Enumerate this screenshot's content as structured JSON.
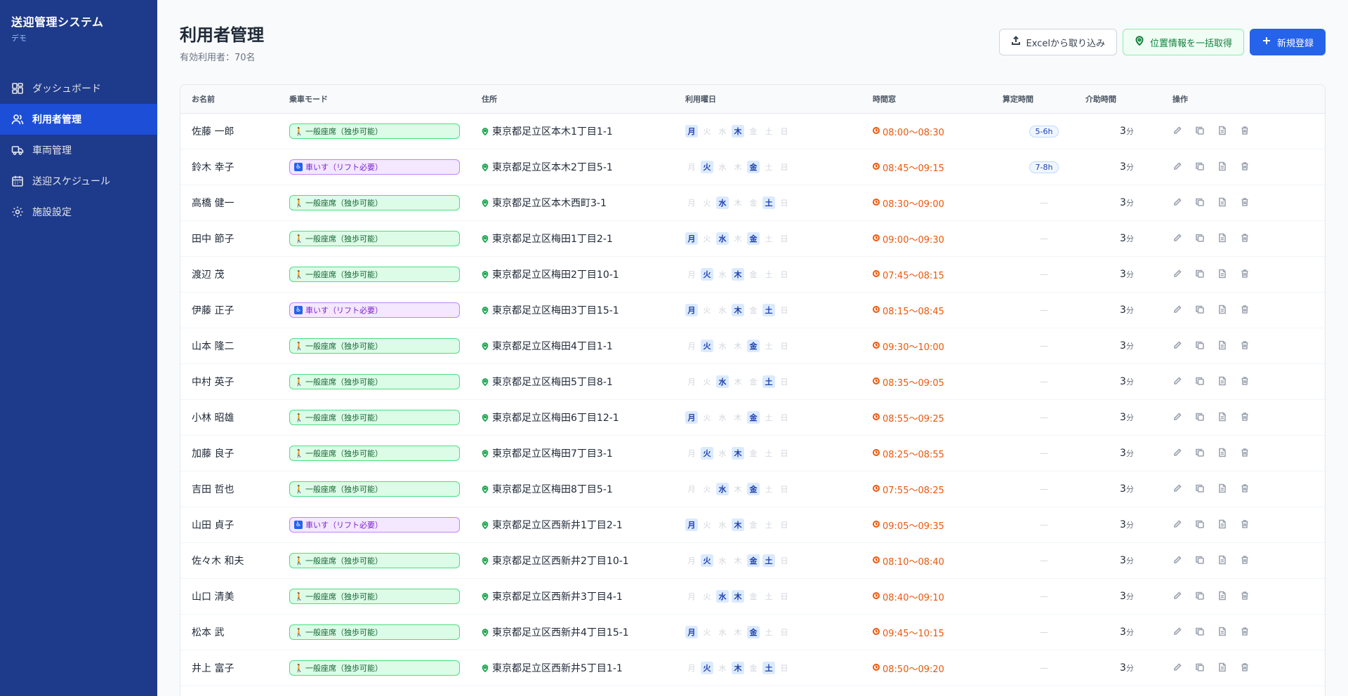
{
  "app": {
    "title": "送迎管理システム",
    "subtitle": "デモ"
  },
  "sidebar": {
    "items": [
      {
        "label": "ダッシュボード",
        "icon": "dashboard-icon",
        "active": false
      },
      {
        "label": "利用者管理",
        "icon": "users-icon",
        "active": true
      },
      {
        "label": "車両管理",
        "icon": "truck-icon",
        "active": false
      },
      {
        "label": "送迎スケジュール",
        "icon": "calendar-icon",
        "active": false
      },
      {
        "label": "施設設定",
        "icon": "gear-icon",
        "active": false
      }
    ]
  },
  "header": {
    "title": "利用者管理",
    "subtitle": "有効利用者：70名"
  },
  "actions": {
    "import_label": "Excelから取り込み",
    "geo_label": "位置情報を一括取得",
    "new_label": "新規登録"
  },
  "table": {
    "columns": [
      "お名前",
      "乗車モード",
      "住所",
      "利用曜日",
      "時間窓",
      "算定時間",
      "介助時間",
      "操作"
    ],
    "day_labels": [
      "月",
      "火",
      "水",
      "木",
      "金",
      "土",
      "日"
    ],
    "mode_labels": {
      "walk": "一般座席（独歩可能）",
      "wheel": "車いす（リフト必要）"
    },
    "empty_calc": "—",
    "assist_unit": "分",
    "rows": [
      {
        "name": "佐藤 一郎",
        "mode": "walk",
        "address": "東京都足立区本木1丁目1-1",
        "days": [
          1,
          0,
          0,
          1,
          0,
          0,
          0
        ],
        "time": "08:00〜08:30",
        "calc": "5-6h",
        "assist": "3"
      },
      {
        "name": "鈴木 幸子",
        "mode": "wheel",
        "address": "東京都足立区本木2丁目5-1",
        "days": [
          0,
          1,
          0,
          0,
          1,
          0,
          0
        ],
        "time": "08:45〜09:15",
        "calc": "7-8h",
        "assist": "3"
      },
      {
        "name": "高橋 健一",
        "mode": "walk",
        "address": "東京都足立区本木西町3-1",
        "days": [
          0,
          0,
          1,
          0,
          0,
          1,
          0
        ],
        "time": "08:30〜09:00",
        "calc": "",
        "assist": "3"
      },
      {
        "name": "田中 節子",
        "mode": "walk",
        "address": "東京都足立区梅田1丁目2-1",
        "days": [
          1,
          0,
          1,
          0,
          1,
          0,
          0
        ],
        "time": "09:00〜09:30",
        "calc": "",
        "assist": "3"
      },
      {
        "name": "渡辺 茂",
        "mode": "walk",
        "address": "東京都足立区梅田2丁目10-1",
        "days": [
          0,
          1,
          0,
          1,
          0,
          0,
          0
        ],
        "time": "07:45〜08:15",
        "calc": "",
        "assist": "3"
      },
      {
        "name": "伊藤 正子",
        "mode": "wheel",
        "address": "東京都足立区梅田3丁目15-1",
        "days": [
          1,
          0,
          0,
          1,
          0,
          1,
          0
        ],
        "time": "08:15〜08:45",
        "calc": "",
        "assist": "3"
      },
      {
        "name": "山本 隆二",
        "mode": "walk",
        "address": "東京都足立区梅田4丁目1-1",
        "days": [
          0,
          1,
          0,
          0,
          1,
          0,
          0
        ],
        "time": "09:30〜10:00",
        "calc": "",
        "assist": "3"
      },
      {
        "name": "中村 英子",
        "mode": "walk",
        "address": "東京都足立区梅田5丁目8-1",
        "days": [
          0,
          0,
          1,
          0,
          0,
          1,
          0
        ],
        "time": "08:35〜09:05",
        "calc": "",
        "assist": "3"
      },
      {
        "name": "小林 昭雄",
        "mode": "walk",
        "address": "東京都足立区梅田6丁目12-1",
        "days": [
          1,
          0,
          0,
          0,
          1,
          0,
          0
        ],
        "time": "08:55〜09:25",
        "calc": "",
        "assist": "3"
      },
      {
        "name": "加藤 良子",
        "mode": "walk",
        "address": "東京都足立区梅田7丁目3-1",
        "days": [
          0,
          1,
          0,
          1,
          0,
          0,
          0
        ],
        "time": "08:25〜08:55",
        "calc": "",
        "assist": "3"
      },
      {
        "name": "吉田 哲也",
        "mode": "walk",
        "address": "東京都足立区梅田8丁目5-1",
        "days": [
          0,
          0,
          1,
          0,
          1,
          0,
          0
        ],
        "time": "07:55〜08:25",
        "calc": "",
        "assist": "3"
      },
      {
        "name": "山田 貞子",
        "mode": "wheel",
        "address": "東京都足立区西新井1丁目2-1",
        "days": [
          1,
          0,
          0,
          1,
          0,
          0,
          0
        ],
        "time": "09:05〜09:35",
        "calc": "",
        "assist": "3"
      },
      {
        "name": "佐々木 和夫",
        "mode": "walk",
        "address": "東京都足立区西新井2丁目10-1",
        "days": [
          0,
          1,
          0,
          0,
          1,
          1,
          0
        ],
        "time": "08:10〜08:40",
        "calc": "",
        "assist": "3"
      },
      {
        "name": "山口 清美",
        "mode": "walk",
        "address": "東京都足立区西新井3丁目4-1",
        "days": [
          0,
          0,
          1,
          1,
          0,
          0,
          0
        ],
        "time": "08:40〜09:10",
        "calc": "",
        "assist": "3"
      },
      {
        "name": "松本 武",
        "mode": "walk",
        "address": "東京都足立区西新井4丁目15-1",
        "days": [
          1,
          0,
          0,
          0,
          1,
          0,
          0
        ],
        "time": "09:45〜10:15",
        "calc": "",
        "assist": "3"
      },
      {
        "name": "井上 富子",
        "mode": "walk",
        "address": "東京都足立区西新井5丁目1-1",
        "days": [
          0,
          1,
          0,
          1,
          0,
          1,
          0
        ],
        "time": "08:50〜09:20",
        "calc": "",
        "assist": "3"
      }
    ]
  }
}
